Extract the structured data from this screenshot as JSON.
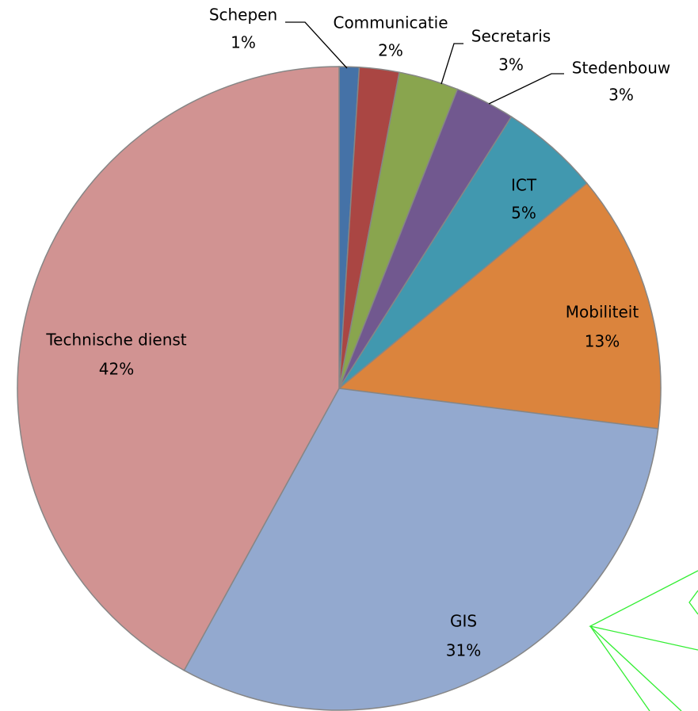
{
  "chart_data": {
    "type": "pie",
    "categories": [
      "Schepen",
      "Communicatie",
      "Secretaris",
      "Stedenbouw",
      "ICT",
      "Mobiliteit",
      "GIS",
      "Technische dienst"
    ],
    "values": [
      1,
      2,
      3,
      3,
      5,
      13,
      31,
      42
    ],
    "value_labels": [
      "1%",
      "2%",
      "3%",
      "3%",
      "5%",
      "13%",
      "31%",
      "42%"
    ],
    "colors": [
      "#4572a7",
      "#aa4643",
      "#89a54e",
      "#71588f",
      "#4198af",
      "#db843d",
      "#93a9cf",
      "#d19392"
    ]
  }
}
